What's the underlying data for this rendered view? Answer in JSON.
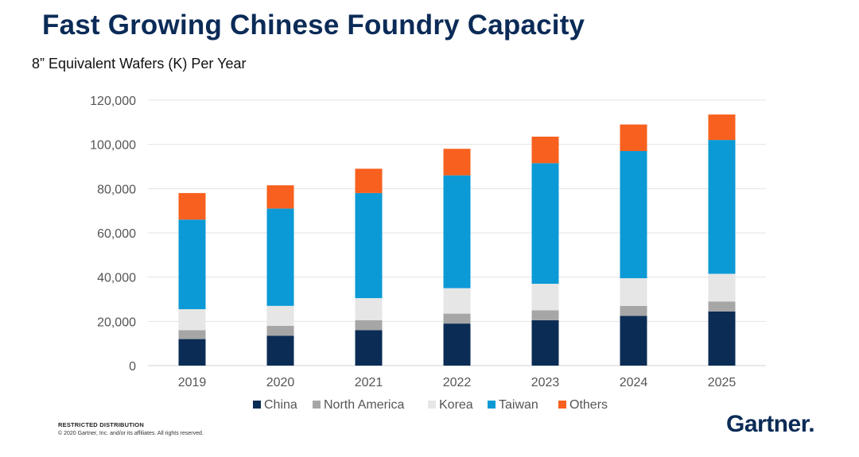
{
  "title": "Fast Growing Chinese Foundry Capacity",
  "subtitle": "8” Equivalent Wafers (K) Per Year",
  "footer": {
    "label": "RESTRICTED DISTRIBUTION",
    "copyright": "© 2020 Gartner, Inc. and/or its affiliates. All rights reserved."
  },
  "logo": {
    "text": "Gartner",
    "dot": "."
  },
  "chart_data": {
    "type": "bar",
    "stacked": true,
    "categories": [
      "2019",
      "2020",
      "2021",
      "2022",
      "2023",
      "2024",
      "2025"
    ],
    "series": [
      {
        "name": "China",
        "color": "#0b2c55",
        "values": [
          12000,
          13500,
          16000,
          19000,
          20500,
          22500,
          24500
        ]
      },
      {
        "name": "North America",
        "color": "#a6a6a6",
        "values": [
          4000,
          4500,
          4500,
          4500,
          4500,
          4500,
          4500
        ]
      },
      {
        "name": "Korea",
        "color": "#e6e6e6",
        "values": [
          9500,
          9000,
          10000,
          11500,
          12000,
          12500,
          12500
        ]
      },
      {
        "name": "Taiwan",
        "color": "#0b9ad6",
        "values": [
          40500,
          44000,
          47500,
          51000,
          54500,
          57500,
          60500
        ]
      },
      {
        "name": "Others",
        "color": "#f7601e",
        "values": [
          12000,
          10500,
          11000,
          12000,
          12000,
          12000,
          11500
        ]
      }
    ],
    "yticks": [
      "0",
      "20,000",
      "40,000",
      "60,000",
      "80,000",
      "100,000",
      "120,000"
    ],
    "ylim": [
      0,
      120000
    ],
    "xlabel": "",
    "ylabel": "",
    "grid": true,
    "legend": "bottom"
  }
}
